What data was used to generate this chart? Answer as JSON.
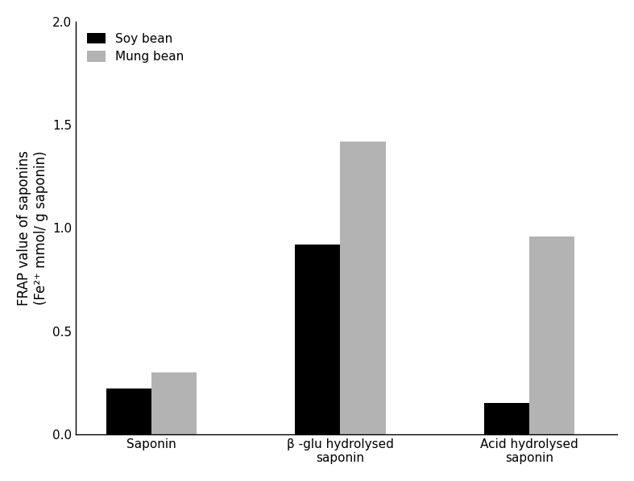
{
  "categories": [
    "Saponin",
    "β -glu hydrolysed\nsaponin",
    "Acid hydrolysed\nsaponin"
  ],
  "soybean_values": [
    0.22,
    0.92,
    0.15
  ],
  "mungbean_values": [
    0.3,
    1.42,
    0.96
  ],
  "soybean_color": "#000000",
  "mungbean_color": "#b3b3b3",
  "ylabel_line1": "FRAP value of saponins",
  "ylabel_line2": "(Fe²⁺ mmol/ g saponin)",
  "ylim": [
    0,
    2.0
  ],
  "yticks": [
    0.0,
    0.5,
    1.0,
    1.5,
    2.0
  ],
  "legend_labels": [
    "Soy bean",
    "Mung bean"
  ],
  "bar_width": 0.18,
  "x_positions": [
    0.25,
    1.0,
    1.75
  ],
  "axis_fontsize": 12,
  "tick_fontsize": 11,
  "legend_fontsize": 11,
  "background_color": "#ffffff"
}
